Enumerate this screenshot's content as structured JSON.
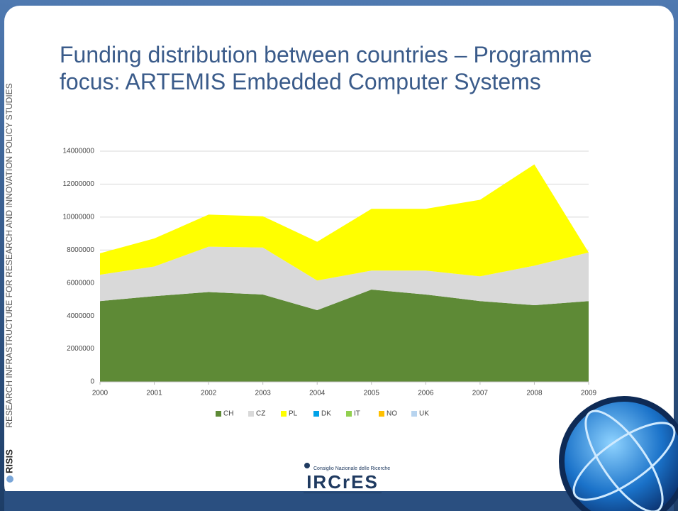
{
  "slide": {
    "side_text": "RESEARCH INFRASTRUCTURE FOR RESEARCH AND INNOVATION POLICY STUDIES",
    "side_brand": "RISIS",
    "logo_caption": "Consiglio Nazionale delle Ricerche",
    "logo_name": "IRCrES"
  },
  "chart_data": {
    "type": "stacked-area",
    "title": "Funding distribution between countries – Programme focus: ARTEMIS Embedded Computer Systems",
    "x": [
      2000,
      2001,
      2002,
      2003,
      2004,
      2005,
      2006,
      2007,
      2008,
      2009
    ],
    "xlim": [
      2000,
      2009
    ],
    "xticks": [
      2000,
      2001,
      2002,
      2003,
      2004,
      2005,
      2006,
      2007,
      2008,
      2009
    ],
    "ylim": [
      0,
      14000000
    ],
    "yticks": [
      0,
      2000000,
      4000000,
      6000000,
      8000000,
      10000000,
      12000000,
      14000000
    ],
    "grid": true,
    "legend": "bottom",
    "series": [
      {
        "name": "CH",
        "color": "#5e8a36",
        "values": [
          4900000,
          5200000,
          5450000,
          5300000,
          4350000,
          5600000,
          5300000,
          4900000,
          4650000,
          4900000
        ]
      },
      {
        "name": "CZ",
        "color": "#d9d9d9",
        "values": [
          1600000,
          1800000,
          2750000,
          2850000,
          1800000,
          1150000,
          1450000,
          1500000,
          2400000,
          2950000
        ]
      },
      {
        "name": "PL",
        "color": "#ffff00",
        "values": [
          1300000,
          1700000,
          1950000,
          1900000,
          2350000,
          3750000,
          3750000,
          4650000,
          6150000,
          0
        ]
      },
      {
        "name": "DK",
        "color": "#00a2e8",
        "values": [
          0,
          0,
          0,
          0,
          0,
          0,
          0,
          0,
          0,
          0
        ]
      },
      {
        "name": "IT",
        "color": "#92d050",
        "values": [
          0,
          0,
          0,
          0,
          0,
          0,
          0,
          0,
          0,
          0
        ]
      },
      {
        "name": "NO",
        "color": "#ffc000",
        "values": [
          0,
          0,
          0,
          0,
          0,
          0,
          0,
          0,
          0,
          0
        ]
      },
      {
        "name": "UK",
        "color": "#b8d4ef",
        "values": [
          0,
          0,
          0,
          0,
          0,
          0,
          0,
          0,
          0,
          0
        ]
      }
    ]
  }
}
